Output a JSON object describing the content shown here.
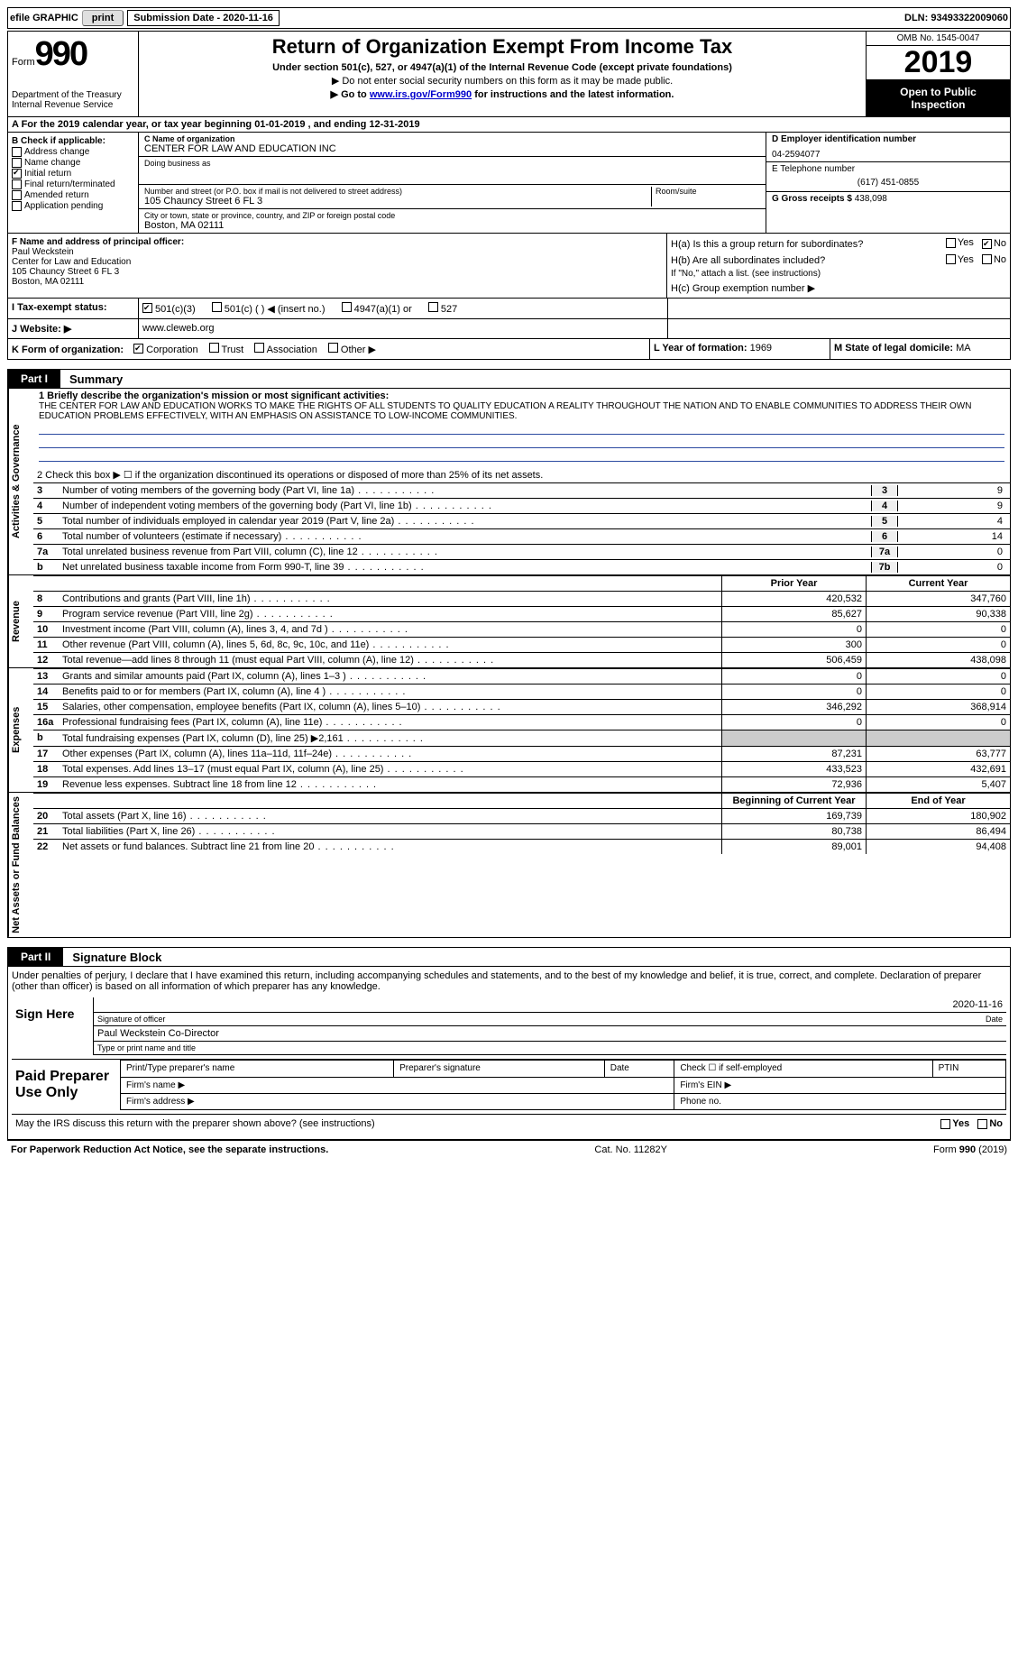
{
  "colors": {
    "text": "#000000",
    "background": "#ffffff",
    "link": "#0000cc",
    "rule": "#2b4aa0",
    "shade": "#f0f0f0",
    "inverse_bg": "#000000",
    "inverse_text": "#ffffff"
  },
  "topbar": {
    "efile_label": "efile GRAPHIC",
    "print_button": "print",
    "submission_label": "Submission Date - 2020-11-16",
    "dln": "DLN: 93493322009060"
  },
  "header": {
    "form_word": "Form",
    "form_number": "990",
    "dept1": "Department of the Treasury",
    "dept2": "Internal Revenue Service",
    "title": "Return of Organization Exempt From Income Tax",
    "subtitle": "Under section 501(c), 527, or 4947(a)(1) of the Internal Revenue Code (except private foundations)",
    "line2": "▶ Do not enter social security numbers on this form as it may be made public.",
    "line3_pre": "▶ Go to ",
    "line3_link": "www.irs.gov/Form990",
    "line3_post": " for instructions and the latest information.",
    "omb": "OMB No. 1545-0047",
    "year": "2019",
    "inspection1": "Open to Public",
    "inspection2": "Inspection"
  },
  "row_a": "A For the 2019 calendar year, or tax year beginning 01-01-2019   , and ending 12-31-2019",
  "box_b": {
    "title": "B Check if applicable:",
    "opts": [
      {
        "label": "Address change",
        "checked": false
      },
      {
        "label": "Name change",
        "checked": false
      },
      {
        "label": "Initial return",
        "checked": true
      },
      {
        "label": "Final return/terminated",
        "checked": false
      },
      {
        "label": "Amended return",
        "checked": false
      },
      {
        "label": "Application pending",
        "checked": false
      }
    ]
  },
  "box_c": {
    "name_label": "C Name of organization",
    "name": "CENTER FOR LAW AND EDUCATION INC",
    "dba_label": "Doing business as",
    "dba": "",
    "addr_label": "Number and street (or P.O. box if mail is not delivered to street address)",
    "room_label": "Room/suite",
    "addr": "105 Chauncy Street 6 FL 3",
    "city_label": "City or town, state or province, country, and ZIP or foreign postal code",
    "city": "Boston, MA  02111"
  },
  "box_d": {
    "ein_label": "D Employer identification number",
    "ein": "04-2594077",
    "tel_label": "E Telephone number",
    "tel": "(617) 451-0855",
    "gross_label": "G Gross receipts $",
    "gross": "438,098"
  },
  "box_f": {
    "label": "F  Name and address of principal officer:",
    "line1": "Paul Weckstein",
    "line2": "Center for Law and Education",
    "line3": "105 Chauncy Street 6 FL 3",
    "line4": "Boston, MA  02111"
  },
  "box_h": {
    "ha": "H(a)  Is this a group return for subordinates?",
    "hb": "H(b)  Are all subordinates included?",
    "hb_note": "If \"No,\" attach a list. (see instructions)",
    "hc": "H(c)  Group exemption number ▶",
    "yes": "Yes",
    "no": "No"
  },
  "box_i": {
    "label": "I   Tax-exempt status:",
    "opts": [
      "501(c)(3)",
      "501(c) (  ) ◀ (insert no.)",
      "4947(a)(1) or",
      "527"
    ]
  },
  "box_j": {
    "label": "J   Website: ▶",
    "value": "www.cleweb.org"
  },
  "box_k": {
    "label": "K Form of organization:",
    "opts": [
      "Corporation",
      "Trust",
      "Association",
      "Other ▶"
    ]
  },
  "box_l": {
    "label": "L Year of formation:",
    "value": "1969"
  },
  "box_m": {
    "label": "M State of legal domicile:",
    "value": "MA"
  },
  "part1": {
    "tab": "Part I",
    "title": "Summary",
    "sections": [
      {
        "vtab": "Activities & Governance",
        "mission_label": "1   Briefly describe the organization's mission or most significant activities:",
        "mission": "THE CENTER FOR LAW AND EDUCATION WORKS TO MAKE THE RIGHTS OF ALL STUDENTS TO QUALITY EDUCATION A REALITY THROUGHOUT THE NATION AND TO ENABLE COMMUNITIES TO ADDRESS THEIR OWN EDUCATION PROBLEMS EFFECTIVELY, WITH AN EMPHASIS ON ASSISTANCE TO LOW-INCOME COMMUNITIES.",
        "line2": "2   Check this box ▶ ☐  if the organization discontinued its operations or disposed of more than 25% of its net assets.",
        "rows": [
          {
            "n": "3",
            "label": "Number of voting members of the governing body (Part VI, line 1a)",
            "box": "3",
            "val": "9"
          },
          {
            "n": "4",
            "label": "Number of independent voting members of the governing body (Part VI, line 1b)",
            "box": "4",
            "val": "9"
          },
          {
            "n": "5",
            "label": "Total number of individuals employed in calendar year 2019 (Part V, line 2a)",
            "box": "5",
            "val": "4"
          },
          {
            "n": "6",
            "label": "Total number of volunteers (estimate if necessary)",
            "box": "6",
            "val": "14"
          },
          {
            "n": "7a",
            "label": "Total unrelated business revenue from Part VIII, column (C), line 12",
            "box": "7a",
            "val": "0"
          },
          {
            "n": "b",
            "label": "Net unrelated business taxable income from Form 990-T, line 39",
            "box": "7b",
            "val": "0"
          }
        ]
      },
      {
        "vtab": "Revenue",
        "head": {
          "prior": "Prior Year",
          "current": "Current Year"
        },
        "rows": [
          {
            "n": "8",
            "label": "Contributions and grants (Part VIII, line 1h)",
            "prior": "420,532",
            "current": "347,760"
          },
          {
            "n": "9",
            "label": "Program service revenue (Part VIII, line 2g)",
            "prior": "85,627",
            "current": "90,338"
          },
          {
            "n": "10",
            "label": "Investment income (Part VIII, column (A), lines 3, 4, and 7d )",
            "prior": "0",
            "current": "0"
          },
          {
            "n": "11",
            "label": "Other revenue (Part VIII, column (A), lines 5, 6d, 8c, 9c, 10c, and 11e)",
            "prior": "300",
            "current": "0"
          },
          {
            "n": "12",
            "label": "Total revenue—add lines 8 through 11 (must equal Part VIII, column (A), line 12)",
            "prior": "506,459",
            "current": "438,098"
          }
        ]
      },
      {
        "vtab": "Expenses",
        "rows": [
          {
            "n": "13",
            "label": "Grants and similar amounts paid (Part IX, column (A), lines 1–3 )",
            "prior": "0",
            "current": "0"
          },
          {
            "n": "14",
            "label": "Benefits paid to or for members (Part IX, column (A), line 4 )",
            "prior": "0",
            "current": "0"
          },
          {
            "n": "15",
            "label": "Salaries, other compensation, employee benefits (Part IX, column (A), lines 5–10)",
            "prior": "346,292",
            "current": "368,914"
          },
          {
            "n": "16a",
            "label": "Professional fundraising fees (Part IX, column (A), line 11e)",
            "prior": "0",
            "current": "0"
          },
          {
            "n": "b",
            "label": "Total fundraising expenses (Part IX, column (D), line 25) ▶2,161",
            "prior": "",
            "current": ""
          },
          {
            "n": "17",
            "label": "Other expenses (Part IX, column (A), lines 11a–11d, 11f–24e)",
            "prior": "87,231",
            "current": "63,777"
          },
          {
            "n": "18",
            "label": "Total expenses. Add lines 13–17 (must equal Part IX, column (A), line 25)",
            "prior": "433,523",
            "current": "432,691"
          },
          {
            "n": "19",
            "label": "Revenue less expenses. Subtract line 18 from line 12",
            "prior": "72,936",
            "current": "5,407"
          }
        ]
      },
      {
        "vtab": "Net Assets or Fund Balances",
        "head": {
          "prior": "Beginning of Current Year",
          "current": "End of Year"
        },
        "rows": [
          {
            "n": "20",
            "label": "Total assets (Part X, line 16)",
            "prior": "169,739",
            "current": "180,902"
          },
          {
            "n": "21",
            "label": "Total liabilities (Part X, line 26)",
            "prior": "80,738",
            "current": "86,494"
          },
          {
            "n": "22",
            "label": "Net assets or fund balances. Subtract line 21 from line 20",
            "prior": "89,001",
            "current": "94,408"
          }
        ]
      }
    ]
  },
  "part2": {
    "tab": "Part II",
    "title": "Signature Block",
    "decl": "Under penalties of perjury, I declare that I have examined this return, including accompanying schedules and statements, and to the best of my knowledge and belief, it is true, correct, and complete. Declaration of preparer (other than officer) is based on all information of which preparer has any knowledge.",
    "sign_here": "Sign Here",
    "sig_officer": "Signature of officer",
    "sig_date": "2020-11-16",
    "date_lbl": "Date",
    "officer": "Paul Weckstein Co-Director",
    "type_name": "Type or print name and title",
    "paid": "Paid Preparer Use Only",
    "col1": "Print/Type preparer's name",
    "col2": "Preparer's signature",
    "col3": "Date",
    "col4": "Check ☐ if self-employed",
    "col5": "PTIN",
    "firm_name": "Firm's name   ▶",
    "firm_ein": "Firm's EIN ▶",
    "firm_addr": "Firm's address ▶",
    "phone": "Phone no.",
    "discuss": "May the IRS discuss this return with the preparer shown above? (see instructions)"
  },
  "footer": {
    "left": "For Paperwork Reduction Act Notice, see the separate instructions.",
    "mid": "Cat. No. 11282Y",
    "right": "Form 990 (2019)"
  }
}
